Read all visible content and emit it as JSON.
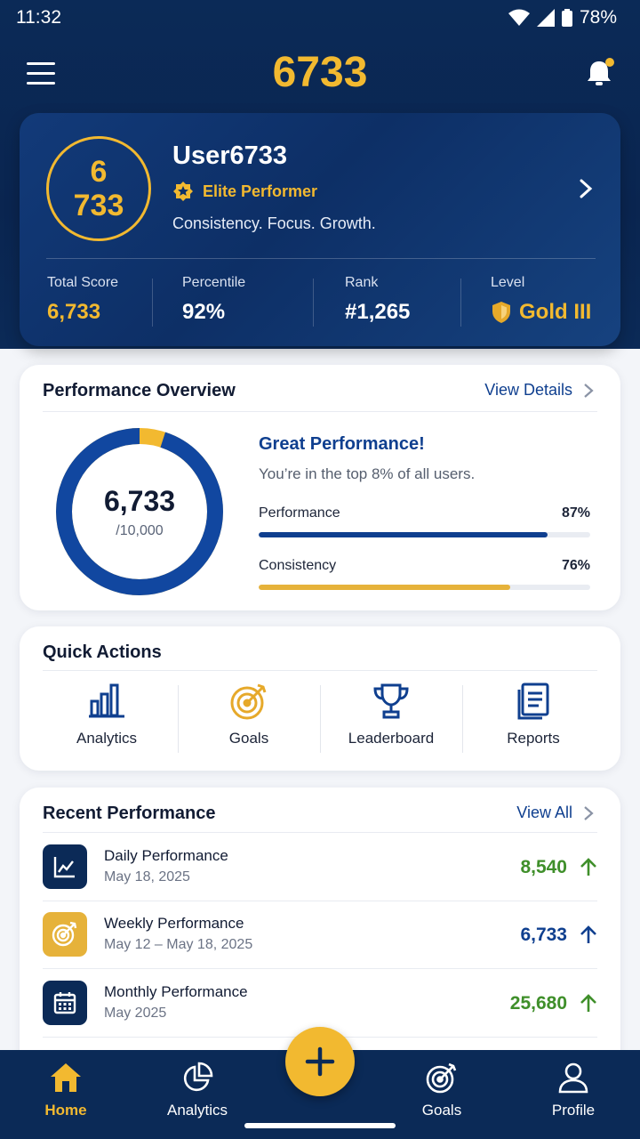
{
  "status": {
    "time": "11:32",
    "battery": "78%"
  },
  "appbar": {
    "title": "6733"
  },
  "profile": {
    "ring_line1": "6",
    "ring_line2": "733",
    "username": "User6733",
    "badge": "Elite Performer",
    "tagline": "Consistency. Focus. Growth.",
    "stats": [
      {
        "label": "Total Score",
        "value": "6,733"
      },
      {
        "label": "Percentile",
        "value": "92%"
      },
      {
        "label": "Rank",
        "value": "#1,265"
      },
      {
        "label": "Level",
        "value": "Gold III"
      }
    ]
  },
  "overview": {
    "title": "Performance Overview",
    "link": "View Details",
    "score": "6,733",
    "max": "/10,000",
    "progress": 0.6733,
    "headline": "Great Performance!",
    "subline": "You’re in the top 8% of all users.",
    "bars": [
      {
        "label": "Performance",
        "pct": "87%",
        "value": 0.87,
        "color": "#0f3f8f"
      },
      {
        "label": "Consistency",
        "pct": "76%",
        "value": 0.76,
        "color": "#e6b23a"
      }
    ]
  },
  "quick": {
    "title": "Quick Actions",
    "items": [
      {
        "label": "Analytics",
        "icon": "bar-chart-icon"
      },
      {
        "label": "Goals",
        "icon": "target-icon"
      },
      {
        "label": "Leaderboard",
        "icon": "trophy-icon"
      },
      {
        "label": "Reports",
        "icon": "report-icon"
      }
    ]
  },
  "recent": {
    "title": "Recent Performance",
    "link": "View All",
    "items": [
      {
        "title": "Daily Performance",
        "date": "May 18, 2025",
        "value": "8,540",
        "color": "#3f8f2a",
        "icon": "trend-chart-icon"
      },
      {
        "title": "Weekly Performance",
        "date": "May 12 – May 18, 2025",
        "value": "6,733",
        "color": "#0f3f8f",
        "icon": "target-icon"
      },
      {
        "title": "Monthly Performance",
        "date": "May 2025",
        "value": "25,680",
        "color": "#3f8f2a",
        "icon": "calendar-icon"
      }
    ]
  },
  "nav": {
    "items": [
      {
        "label": "Home",
        "icon": "home-icon",
        "active": true
      },
      {
        "label": "Analytics",
        "icon": "pie-chart-icon"
      },
      {
        "label": "Goals",
        "icon": "target-icon"
      },
      {
        "label": "Profile",
        "icon": "user-icon"
      }
    ]
  },
  "colors": {
    "navy": "#0b2a57",
    "gold": "#f2b930",
    "blue": "#0f3f8f",
    "green": "#3f8f2a"
  }
}
